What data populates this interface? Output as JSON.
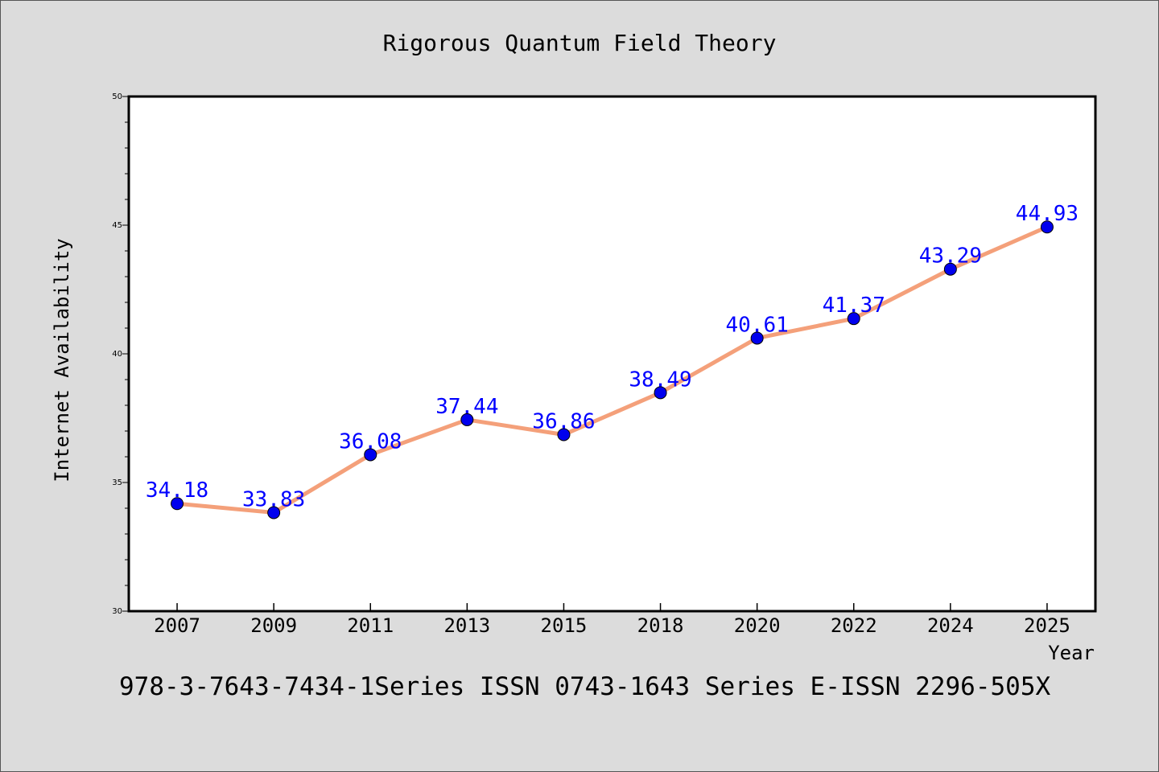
{
  "chart_data": {
    "type": "line",
    "title": "Rigorous Quantum Field Theory",
    "xlabel": "Year",
    "ylabel": "Internet Availability",
    "footer": "978-3-7643-7434-1Series ISSN 0743-1643 Series E-ISSN 2296-505X",
    "categories": [
      "2007",
      "2009",
      "2011",
      "2013",
      "2015",
      "2018",
      "2020",
      "2022",
      "2024",
      "2025"
    ],
    "values": [
      34.18,
      33.83,
      36.08,
      37.44,
      36.86,
      38.49,
      40.61,
      41.37,
      43.29,
      44.93
    ],
    "data_labels": [
      "34.18",
      "33.83",
      "36.08",
      "37.44",
      "36.86",
      "38.49",
      "40.61",
      "41.37",
      "43.29",
      "44.93"
    ],
    "ylim": [
      30,
      50
    ],
    "yticks": [
      "30",
      "35",
      "40",
      "45",
      "50"
    ],
    "grid": false,
    "legend": "none",
    "colors": {
      "line": "#f4a07a",
      "marker": "#0000ee",
      "label": "#0000ff",
      "axis": "#000000",
      "plot_bg": "#ffffff",
      "page_bg": "#dcdcdc"
    }
  }
}
